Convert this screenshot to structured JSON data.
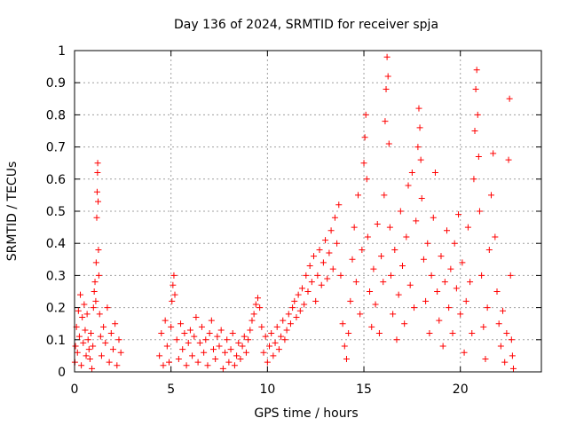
{
  "chart_data": {
    "type": "scatter",
    "title": "Day 136 of 2024, SRMTID for receiver spja",
    "xlabel": "GPS time / hours",
    "ylabel": "SRMTID / TECUs",
    "xlim": [
      0,
      24.2
    ],
    "ylim": [
      0,
      1
    ],
    "xticks": [
      0,
      5,
      10,
      15,
      20
    ],
    "yticks": [
      0,
      0.1,
      0.2,
      0.3,
      0.4,
      0.5,
      0.6,
      0.7,
      0.8,
      0.9,
      1
    ],
    "ytick_labels": [
      "0",
      "0.1",
      "0.2",
      "0.3",
      "0.4",
      "0.5",
      "0.6",
      "0.7",
      "0.8",
      "0.9",
      "1"
    ],
    "grid": true,
    "marker": "+",
    "color": "#ff0000",
    "series": [
      {
        "name": "SRMTID",
        "points": [
          [
            0.02,
            0.03
          ],
          [
            0.05,
            0.08
          ],
          [
            0.1,
            0.14
          ],
          [
            0.15,
            0.06
          ],
          [
            0.2,
            0.19
          ],
          [
            0.25,
            0.11
          ],
          [
            0.3,
            0.24
          ],
          [
            0.35,
            0.02
          ],
          [
            0.4,
            0.17
          ],
          [
            0.45,
            0.09
          ],
          [
            0.5,
            0.21
          ],
          [
            0.55,
            0.13
          ],
          [
            0.6,
            0.05
          ],
          [
            0.65,
            0.18
          ],
          [
            0.7,
            0.1
          ],
          [
            0.75,
            0.07
          ],
          [
            0.8,
            0.04
          ],
          [
            0.85,
            0.12
          ],
          [
            0.9,
            0.01
          ],
          [
            0.95,
            0.08
          ],
          [
            0.98,
            0.2
          ],
          [
            1.02,
            0.25
          ],
          [
            1.06,
            0.28
          ],
          [
            1.1,
            0.22
          ],
          [
            1.12,
            0.34
          ],
          [
            1.15,
            0.48
          ],
          [
            1.17,
            0.56
          ],
          [
            1.19,
            0.62
          ],
          [
            1.2,
            0.65
          ],
          [
            1.22,
            0.53
          ],
          [
            1.24,
            0.38
          ],
          [
            1.26,
            0.3
          ],
          [
            1.3,
            0.18
          ],
          [
            1.35,
            0.11
          ],
          [
            1.4,
            0.05
          ],
          [
            1.5,
            0.14
          ],
          [
            1.6,
            0.09
          ],
          [
            1.7,
            0.2
          ],
          [
            1.8,
            0.03
          ],
          [
            1.9,
            0.12
          ],
          [
            2.0,
            0.07
          ],
          [
            2.1,
            0.15
          ],
          [
            2.2,
            0.02
          ],
          [
            2.3,
            0.1
          ],
          [
            2.4,
            0.06
          ],
          [
            4.4,
            0.05
          ],
          [
            4.5,
            0.12
          ],
          [
            4.6,
            0.02
          ],
          [
            4.7,
            0.16
          ],
          [
            4.8,
            0.08
          ],
          [
            4.9,
            0.03
          ],
          [
            5.0,
            0.14
          ],
          [
            5.05,
            0.22
          ],
          [
            5.1,
            0.27
          ],
          [
            5.15,
            0.3
          ],
          [
            5.2,
            0.24
          ],
          [
            5.3,
            0.1
          ],
          [
            5.4,
            0.04
          ],
          [
            5.5,
            0.15
          ],
          [
            5.6,
            0.07
          ],
          [
            5.7,
            0.12
          ],
          [
            5.8,
            0.02
          ],
          [
            5.9,
            0.09
          ],
          [
            6.0,
            0.13
          ],
          [
            6.1,
            0.05
          ],
          [
            6.2,
            0.11
          ],
          [
            6.3,
            0.17
          ],
          [
            6.4,
            0.03
          ],
          [
            6.5,
            0.09
          ],
          [
            6.6,
            0.14
          ],
          [
            6.7,
            0.06
          ],
          [
            6.8,
            0.1
          ],
          [
            6.9,
            0.02
          ],
          [
            7.0,
            0.12
          ],
          [
            7.1,
            0.16
          ],
          [
            7.2,
            0.07
          ],
          [
            7.3,
            0.04
          ],
          [
            7.4,
            0.11
          ],
          [
            7.5,
            0.08
          ],
          [
            7.6,
            0.13
          ],
          [
            7.7,
            0.01
          ],
          [
            7.8,
            0.06
          ],
          [
            7.9,
            0.1
          ],
          [
            8.0,
            0.03
          ],
          [
            8.1,
            0.07
          ],
          [
            8.2,
            0.12
          ],
          [
            8.3,
            0.02
          ],
          [
            8.4,
            0.05
          ],
          [
            8.5,
            0.09
          ],
          [
            8.6,
            0.04
          ],
          [
            8.7,
            0.08
          ],
          [
            8.8,
            0.11
          ],
          [
            8.9,
            0.06
          ],
          [
            9.0,
            0.1
          ],
          [
            9.1,
            0.13
          ],
          [
            9.2,
            0.16
          ],
          [
            9.3,
            0.18
          ],
          [
            9.4,
            0.21
          ],
          [
            9.5,
            0.23
          ],
          [
            9.6,
            0.2
          ],
          [
            9.7,
            0.14
          ],
          [
            9.8,
            0.06
          ],
          [
            9.9,
            0.11
          ],
          [
            10.0,
            0.03
          ],
          [
            10.1,
            0.08
          ],
          [
            10.2,
            0.12
          ],
          [
            10.3,
            0.05
          ],
          [
            10.4,
            0.09
          ],
          [
            10.5,
            0.14
          ],
          [
            10.6,
            0.07
          ],
          [
            10.7,
            0.11
          ],
          [
            10.8,
            0.16
          ],
          [
            10.9,
            0.1
          ],
          [
            11.0,
            0.13
          ],
          [
            11.1,
            0.18
          ],
          [
            11.2,
            0.15
          ],
          [
            11.3,
            0.2
          ],
          [
            11.4,
            0.22
          ],
          [
            11.5,
            0.17
          ],
          [
            11.6,
            0.24
          ],
          [
            11.7,
            0.19
          ],
          [
            11.8,
            0.26
          ],
          [
            11.9,
            0.21
          ],
          [
            12.0,
            0.3
          ],
          [
            12.1,
            0.25
          ],
          [
            12.2,
            0.33
          ],
          [
            12.3,
            0.28
          ],
          [
            12.4,
            0.36
          ],
          [
            12.5,
            0.22
          ],
          [
            12.6,
            0.3
          ],
          [
            12.7,
            0.38
          ],
          [
            12.8,
            0.27
          ],
          [
            12.9,
            0.34
          ],
          [
            13.0,
            0.41
          ],
          [
            13.1,
            0.29
          ],
          [
            13.2,
            0.37
          ],
          [
            13.3,
            0.44
          ],
          [
            13.4,
            0.32
          ],
          [
            13.5,
            0.48
          ],
          [
            13.6,
            0.4
          ],
          [
            13.7,
            0.52
          ],
          [
            13.8,
            0.3
          ],
          [
            13.9,
            0.15
          ],
          [
            14.0,
            0.08
          ],
          [
            14.1,
            0.04
          ],
          [
            14.2,
            0.12
          ],
          [
            14.3,
            0.22
          ],
          [
            14.4,
            0.35
          ],
          [
            14.5,
            0.45
          ],
          [
            14.6,
            0.28
          ],
          [
            14.7,
            0.55
          ],
          [
            14.8,
            0.18
          ],
          [
            14.9,
            0.38
          ],
          [
            15.0,
            0.65
          ],
          [
            15.05,
            0.73
          ],
          [
            15.1,
            0.8
          ],
          [
            15.15,
            0.6
          ],
          [
            15.2,
            0.42
          ],
          [
            15.3,
            0.25
          ],
          [
            15.4,
            0.14
          ],
          [
            15.5,
            0.32
          ],
          [
            15.6,
            0.21
          ],
          [
            15.7,
            0.46
          ],
          [
            15.8,
            0.12
          ],
          [
            15.9,
            0.36
          ],
          [
            16.0,
            0.28
          ],
          [
            16.05,
            0.55
          ],
          [
            16.1,
            0.78
          ],
          [
            16.15,
            0.88
          ],
          [
            16.2,
            0.98
          ],
          [
            16.25,
            0.92
          ],
          [
            16.3,
            0.71
          ],
          [
            16.35,
            0.45
          ],
          [
            16.4,
            0.3
          ],
          [
            16.5,
            0.18
          ],
          [
            16.6,
            0.38
          ],
          [
            16.7,
            0.1
          ],
          [
            16.8,
            0.24
          ],
          [
            16.9,
            0.5
          ],
          [
            17.0,
            0.33
          ],
          [
            17.1,
            0.15
          ],
          [
            17.2,
            0.42
          ],
          [
            17.3,
            0.58
          ],
          [
            17.4,
            0.27
          ],
          [
            17.5,
            0.62
          ],
          [
            17.6,
            0.2
          ],
          [
            17.7,
            0.47
          ],
          [
            17.8,
            0.7
          ],
          [
            17.85,
            0.82
          ],
          [
            17.9,
            0.76
          ],
          [
            17.95,
            0.66
          ],
          [
            18.0,
            0.54
          ],
          [
            18.1,
            0.35
          ],
          [
            18.2,
            0.22
          ],
          [
            18.3,
            0.4
          ],
          [
            18.4,
            0.12
          ],
          [
            18.5,
            0.3
          ],
          [
            18.6,
            0.48
          ],
          [
            18.7,
            0.62
          ],
          [
            18.8,
            0.25
          ],
          [
            18.9,
            0.16
          ],
          [
            19.0,
            0.36
          ],
          [
            19.1,
            0.08
          ],
          [
            19.2,
            0.28
          ],
          [
            19.3,
            0.44
          ],
          [
            19.4,
            0.2
          ],
          [
            19.5,
            0.32
          ],
          [
            19.6,
            0.12
          ],
          [
            19.7,
            0.4
          ],
          [
            19.8,
            0.26
          ],
          [
            19.9,
            0.49
          ],
          [
            20.0,
            0.18
          ],
          [
            20.1,
            0.34
          ],
          [
            20.2,
            0.06
          ],
          [
            20.3,
            0.22
          ],
          [
            20.4,
            0.45
          ],
          [
            20.5,
            0.28
          ],
          [
            20.6,
            0.12
          ],
          [
            20.7,
            0.6
          ],
          [
            20.75,
            0.75
          ],
          [
            20.8,
            0.88
          ],
          [
            20.85,
            0.94
          ],
          [
            20.9,
            0.8
          ],
          [
            20.95,
            0.67
          ],
          [
            21.0,
            0.5
          ],
          [
            21.1,
            0.3
          ],
          [
            21.2,
            0.14
          ],
          [
            21.3,
            0.04
          ],
          [
            21.4,
            0.2
          ],
          [
            21.5,
            0.38
          ],
          [
            21.6,
            0.55
          ],
          [
            21.7,
            0.68
          ],
          [
            21.8,
            0.42
          ],
          [
            21.9,
            0.25
          ],
          [
            22.0,
            0.15
          ],
          [
            22.1,
            0.08
          ],
          [
            22.2,
            0.19
          ],
          [
            22.3,
            0.03
          ],
          [
            22.4,
            0.12
          ],
          [
            22.5,
            0.66
          ],
          [
            22.55,
            0.85
          ],
          [
            22.6,
            0.3
          ],
          [
            22.65,
            0.1
          ],
          [
            22.7,
            0.05
          ],
          [
            22.75,
            0.01
          ]
        ]
      }
    ]
  }
}
